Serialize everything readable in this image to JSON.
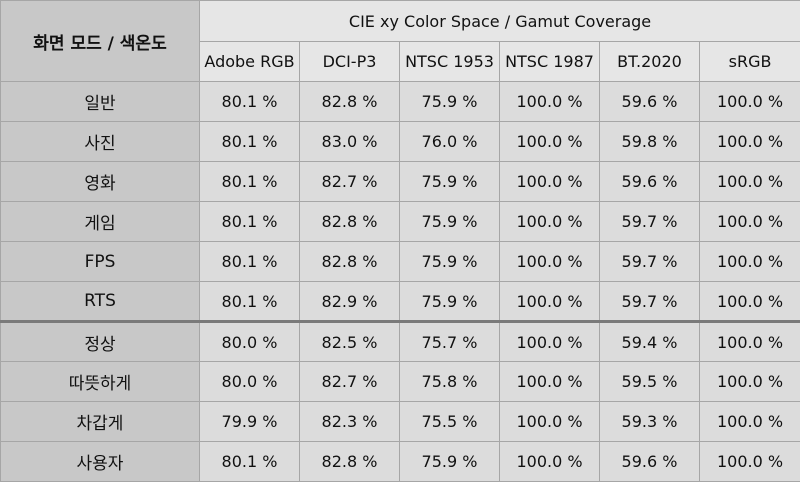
{
  "header": {
    "mode_label": "화면 모드 / 색온도",
    "group_label": "CIE xy Color Space / Gamut Coverage",
    "columns": [
      "Adobe RGB",
      "DCI-P3",
      "NTSC 1953",
      "NTSC 1987",
      "BT.2020",
      "sRGB"
    ]
  },
  "rows": [
    {
      "mode": "일반",
      "values": [
        "80.1 %",
        "82.8 %",
        "75.9 %",
        "100.0 %",
        "59.6 %",
        "100.0 %"
      ]
    },
    {
      "mode": "사진",
      "values": [
        "80.1 %",
        "83.0 %",
        "76.0 %",
        "100.0 %",
        "59.8 %",
        "100.0 %"
      ]
    },
    {
      "mode": "영화",
      "values": [
        "80.1 %",
        "82.7 %",
        "75.9 %",
        "100.0 %",
        "59.6 %",
        "100.0 %"
      ]
    },
    {
      "mode": "게임",
      "values": [
        "80.1 %",
        "82.8 %",
        "75.9 %",
        "100.0 %",
        "59.7 %",
        "100.0 %"
      ]
    },
    {
      "mode": "FPS",
      "values": [
        "80.1 %",
        "82.8 %",
        "75.9 %",
        "100.0 %",
        "59.7 %",
        "100.0 %"
      ]
    },
    {
      "mode": "RTS",
      "values": [
        "80.1 %",
        "82.9 %",
        "75.9 %",
        "100.0 %",
        "59.7 %",
        "100.0 %"
      ]
    },
    {
      "mode": "정상",
      "values": [
        "80.0 %",
        "82.5 %",
        "75.7 %",
        "100.0 %",
        "59.4 %",
        "100.0 %"
      ]
    },
    {
      "mode": "따뜻하게",
      "values": [
        "80.0 %",
        "82.7 %",
        "75.8 %",
        "100.0 %",
        "59.5 %",
        "100.0 %"
      ]
    },
    {
      "mode": "차갑게",
      "values": [
        "79.9 %",
        "82.3 %",
        "75.5 %",
        "100.0 %",
        "59.3 %",
        "100.0 %"
      ]
    },
    {
      "mode": "사용자",
      "values": [
        "80.1 %",
        "82.8 %",
        "75.9 %",
        "100.0 %",
        "59.6 %",
        "100.0 %"
      ]
    }
  ]
}
